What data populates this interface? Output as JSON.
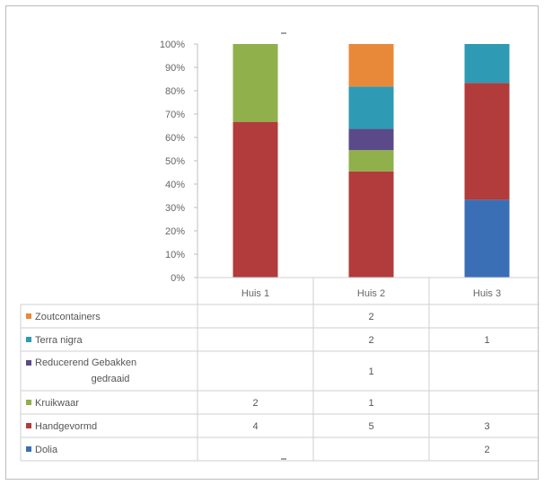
{
  "chart_data": {
    "type": "bar",
    "stacked": true,
    "normalized": true,
    "categories": [
      "Huis 1",
      "Huis 2",
      "Huis 3"
    ],
    "ylim": [
      0,
      100
    ],
    "yticks": [
      "0%",
      "10%",
      "20%",
      "30%",
      "40%",
      "50%",
      "60%",
      "70%",
      "80%",
      "90%",
      "100%"
    ],
    "grid": false,
    "legend_placement": "data-table-rows",
    "series": [
      {
        "name": "Dolia",
        "color": "#3a6fb5",
        "values": [
          null,
          null,
          2
        ]
      },
      {
        "name": "Handgevormd",
        "color": "#b23b3b",
        "values": [
          4,
          5,
          3
        ]
      },
      {
        "name": "Kruikwaar",
        "color": "#8fb04a",
        "values": [
          2,
          1,
          null
        ]
      },
      {
        "name": "Reducerend Gebakken",
        "name2": "gedraaid",
        "color": "#5b4a8a",
        "values": [
          null,
          1,
          null
        ]
      },
      {
        "name": "Terra nigra",
        "color": "#2f9ab3",
        "values": [
          null,
          2,
          1
        ]
      },
      {
        "name": "Zoutcontainers",
        "color": "#e8893a",
        "values": [
          null,
          2,
          null
        ]
      }
    ]
  }
}
